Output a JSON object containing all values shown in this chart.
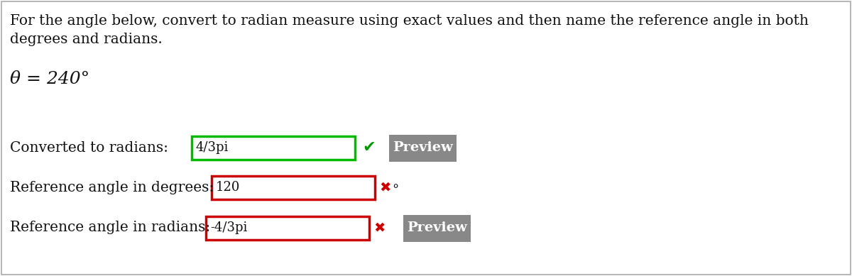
{
  "bg_color": "#ffffff",
  "instruction_line1": "For the angle below, convert to radian measure using exact values and then name the reference angle in both",
  "instruction_line2": "degrees and radians.",
  "equation": "θ = 240°",
  "row1_label": "Converted to radians:",
  "row1_value": "4/3pi",
  "row1_box_color": "#00bb00",
  "row1_check_color": "#009900",
  "row2_label": "Reference angle in degrees:",
  "row2_value": "120",
  "row2_box_color": "#cc0000",
  "row2_x_color": "#cc0000",
  "row3_label": "Reference angle in radians:",
  "row3_value": "-4/3pi",
  "row3_box_color": "#cc0000",
  "row3_x_color": "#cc0000",
  "preview_btn_color": "#888888",
  "preview_text_color": "#ffffff",
  "preview_text": "Preview",
  "font_size_instruction": 14.5,
  "font_size_equation": 18,
  "font_size_label": 14.5,
  "font_size_value": 13,
  "font_size_preview": 14,
  "font_size_check": 16,
  "font_size_x": 14,
  "font_size_degree": 13
}
